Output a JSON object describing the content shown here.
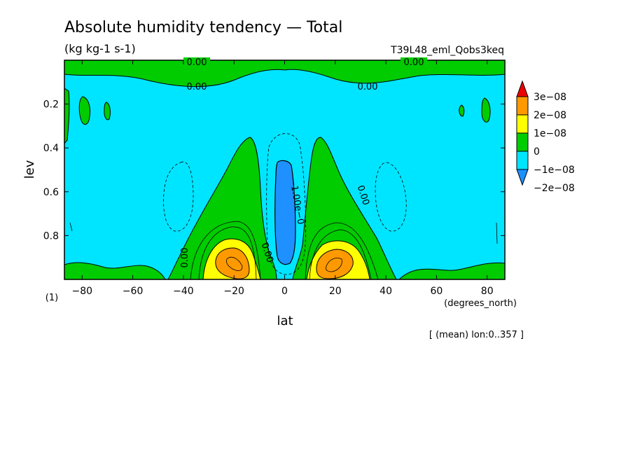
{
  "chart_data": {
    "type": "heatmap",
    "title": "Absolute humidity tendency — Total",
    "units": "(kg kg-1 s-1)",
    "run_name": "T39L48_eml_Qobs3keq",
    "xlabel": "lat",
    "x_units": "(degrees_north)",
    "ylabel": "lev",
    "y_units": "(1)",
    "footnote": "[ (mean) lon:0..357 ]",
    "xlim": [
      -87,
      87
    ],
    "ylim": [
      1.0,
      0.0
    ],
    "x_ticks": [
      -80,
      -60,
      -40,
      -20,
      0,
      20,
      40,
      60,
      80
    ],
    "x_tick_labels": [
      "−80",
      "−60",
      "−40",
      "−20",
      "0",
      "20",
      "40",
      "60",
      "80"
    ],
    "y_ticks": [
      0.2,
      0.4,
      0.6,
      0.8
    ],
    "y_tick_labels": [
      "0.2",
      "0.4",
      "0.6",
      "0.8"
    ],
    "contour_labels": [
      "0.00",
      "0.00",
      "0.00",
      "0.00",
      "0.00",
      "0.00",
      "0.00",
      "−1.00e−0"
    ],
    "colorbar": {
      "levels": [
        -2e-08,
        -1e-08,
        0,
        1e-08,
        2e-08,
        3e-08
      ],
      "labels": [
        "3e−08",
        "2e−08",
        "1e−08",
        "0",
        "−1e−08",
        "−2e−08"
      ],
      "colors": [
        "#ee0000",
        "#ff9900",
        "#ffff00",
        "#00cc00",
        "#00e5ff",
        "#1e90ff"
      ]
    },
    "field_features": [
      {
        "region": "background",
        "value_range": [
          -1e-08,
          0
        ]
      },
      {
        "region": "tropical columns (±10–40°)",
        "value_range": [
          0,
          1e-08
        ]
      },
      {
        "region": "lower-level maxima near ±20°, lev 0.85–1.0",
        "value_range": [
          2e-08,
          3e-08
        ]
      },
      {
        "region": "equatorial column, lev 0.45–0.95",
        "value_range": [
          -2e-08,
          -1e-08
        ]
      },
      {
        "region": "top band near lev 0.0–0.05",
        "value_range": [
          0,
          1e-08
        ]
      }
    ]
  }
}
